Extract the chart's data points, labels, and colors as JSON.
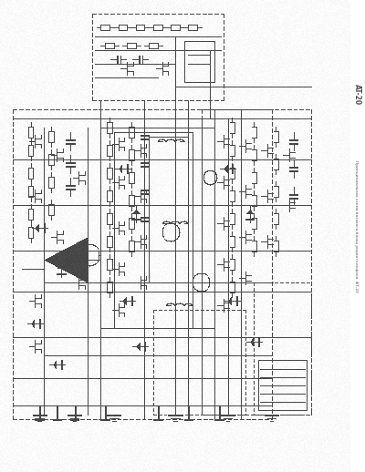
{
  "background_color": "#ffffff",
  "fig_width": 4.0,
  "fig_height": 5.18,
  "dpi": 100,
  "sidebar_text": "Принципиальная схема базового блока радиотелефона  АТ-20",
  "sidebar_label": "AT-20",
  "line_color": "#606060",
  "schematic_color": "#505050",
  "text_color": "#555555"
}
